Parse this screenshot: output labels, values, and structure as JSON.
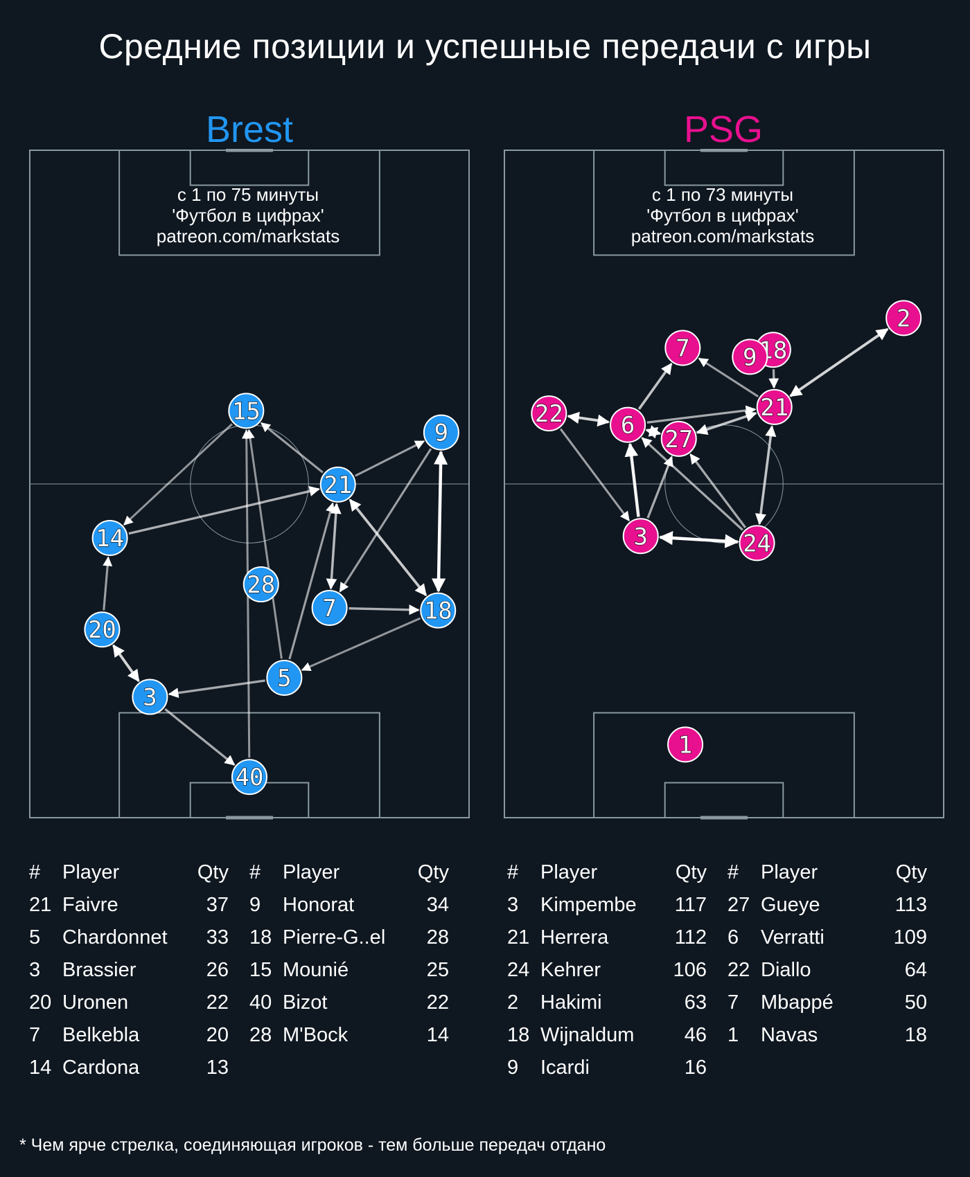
{
  "title": "Средние позиции и успешные передачи с игры",
  "footnote": "* Чем ярче стрелка, соединяющая игроков - тем больше передач отдано",
  "teams": [
    {
      "name": "Brest",
      "color": "#2196f3",
      "info": [
        "с 1 по 75 минуты",
        "'Футбол в цифрах'",
        "patreon.com/markstats"
      ],
      "table_headers": [
        "#",
        "Player",
        "Qty"
      ],
      "tables": [
        [
          {
            "num": "21",
            "player": "Faivre",
            "qty": "37"
          },
          {
            "num": "5",
            "player": "Chardonnet",
            "qty": "33"
          },
          {
            "num": "3",
            "player": "Brassier",
            "qty": "26"
          },
          {
            "num": "20",
            "player": "Uronen",
            "qty": "22"
          },
          {
            "num": "7",
            "player": "Belkebla",
            "qty": "20"
          },
          {
            "num": "14",
            "player": "Cardona",
            "qty": "13"
          }
        ],
        [
          {
            "num": "9",
            "player": "Honorat",
            "qty": "34"
          },
          {
            "num": "18",
            "player": "Pierre-G..el",
            "qty": "28"
          },
          {
            "num": "15",
            "player": "Mounié",
            "qty": "25"
          },
          {
            "num": "40",
            "player": "Bizot",
            "qty": "22"
          },
          {
            "num": "28",
            "player": "M'Bock",
            "qty": "14"
          }
        ]
      ]
    },
    {
      "name": "PSG",
      "color": "#e8108f",
      "info": [
        "с 1 по 73 минуты",
        "'Футбол в цифрах'",
        "patreon.com/markstats"
      ],
      "table_headers": [
        "#",
        "Player",
        "Qty"
      ],
      "tables": [
        [
          {
            "num": "3",
            "player": "Kimpembe",
            "qty": "117"
          },
          {
            "num": "21",
            "player": "Herrera",
            "qty": "112"
          },
          {
            "num": "24",
            "player": "Kehrer",
            "qty": "106"
          },
          {
            "num": "2",
            "player": "Hakimi",
            "qty": "63"
          },
          {
            "num": "18",
            "player": "Wijnaldum",
            "qty": "46"
          },
          {
            "num": "9",
            "player": "Icardi",
            "qty": "16"
          }
        ],
        [
          {
            "num": "27",
            "player": "Gueye",
            "qty": "113"
          },
          {
            "num": "6",
            "player": "Verratti",
            "qty": "109"
          },
          {
            "num": "22",
            "player": "Diallo",
            "qty": "64"
          },
          {
            "num": "7",
            "player": "Mbappé",
            "qty": "50"
          },
          {
            "num": "1",
            "player": "Navas",
            "qty": "18"
          }
        ]
      ]
    }
  ],
  "chart_data": [
    {
      "type": "scatter",
      "title": "Brest",
      "pitch": {
        "x_range": [
          0,
          68
        ],
        "y_range": [
          0,
          105
        ]
      },
      "players": [
        {
          "num": "15",
          "x": 33.5,
          "y": 64.0
        },
        {
          "num": "21",
          "x": 47.7,
          "y": 52.4
        },
        {
          "num": "9",
          "x": 63.7,
          "y": 60.6
        },
        {
          "num": "14",
          "x": 12.4,
          "y": 44.0
        },
        {
          "num": "28",
          "x": 35.8,
          "y": 36.7
        },
        {
          "num": "7",
          "x": 46.4,
          "y": 33.0
        },
        {
          "num": "18",
          "x": 63.2,
          "y": 32.6
        },
        {
          "num": "20",
          "x": 11.2,
          "y": 29.6
        },
        {
          "num": "5",
          "x": 39.4,
          "y": 22.0
        },
        {
          "num": "3",
          "x": 18.6,
          "y": 19.0
        },
        {
          "num": "40",
          "x": 34.0,
          "y": 6.4
        }
      ],
      "passes": [
        {
          "from": "9",
          "to": "18",
          "brightness": 1.0,
          "bidirectional": true
        },
        {
          "from": "21",
          "to": "18",
          "brightness": 0.7,
          "bidirectional": true
        },
        {
          "from": "20",
          "to": "3",
          "brightness": 0.75,
          "bidirectional": true
        },
        {
          "from": "21",
          "to": "7",
          "brightness": 0.6,
          "bidirectional": true
        },
        {
          "from": "21",
          "to": "15",
          "brightness": 0.45
        },
        {
          "from": "21",
          "to": "9",
          "brightness": 0.45
        },
        {
          "from": "14",
          "to": "21",
          "brightness": 0.55
        },
        {
          "from": "15",
          "to": "14",
          "brightness": 0.4
        },
        {
          "from": "20",
          "to": "14",
          "brightness": 0.45
        },
        {
          "from": "9",
          "to": "7",
          "brightness": 0.45
        },
        {
          "from": "7",
          "to": "18",
          "brightness": 0.55
        },
        {
          "from": "18",
          "to": "5",
          "brightness": 0.4
        },
        {
          "from": "5",
          "to": "21",
          "brightness": 0.45
        },
        {
          "from": "5",
          "to": "15",
          "brightness": 0.4
        },
        {
          "from": "5",
          "to": "3",
          "brightness": 0.5
        },
        {
          "from": "3",
          "to": "40",
          "brightness": 0.5
        },
        {
          "from": "40",
          "to": "15",
          "brightness": 0.4
        }
      ]
    },
    {
      "type": "scatter",
      "title": "PSG",
      "pitch": {
        "x_range": [
          0,
          68
        ],
        "y_range": [
          0,
          105
        ]
      },
      "players": [
        {
          "num": "2",
          "x": 61.8,
          "y": 78.6
        },
        {
          "num": "7",
          "x": 27.6,
          "y": 73.9
        },
        {
          "num": "18",
          "x": 41.6,
          "y": 73.6
        },
        {
          "num": "9",
          "x": 38.0,
          "y": 72.5
        },
        {
          "num": "21",
          "x": 41.8,
          "y": 64.6
        },
        {
          "num": "22",
          "x": 6.9,
          "y": 63.6
        },
        {
          "num": "6",
          "x": 19.1,
          "y": 61.8
        },
        {
          "num": "27",
          "x": 27.0,
          "y": 59.6
        },
        {
          "num": "3",
          "x": 21.1,
          "y": 44.3
        },
        {
          "num": "24",
          "x": 39.1,
          "y": 43.2
        },
        {
          "num": "1",
          "x": 28.0,
          "y": 11.5
        }
      ],
      "passes": [
        {
          "from": "3",
          "to": "24",
          "brightness": 1.0,
          "bidirectional": true
        },
        {
          "from": "3",
          "to": "6",
          "brightness": 0.95
        },
        {
          "from": "2",
          "to": "21",
          "brightness": 0.75,
          "bidirectional": true
        },
        {
          "from": "22",
          "to": "6",
          "brightness": 0.75,
          "bidirectional": true
        },
        {
          "from": "6",
          "to": "27",
          "brightness": 0.7,
          "bidirectional": true
        },
        {
          "from": "27",
          "to": "21",
          "brightness": 0.65,
          "bidirectional": true
        },
        {
          "from": "24",
          "to": "21",
          "brightness": 0.65,
          "bidirectional": true
        },
        {
          "from": "6",
          "to": "7",
          "brightness": 0.65
        },
        {
          "from": "6",
          "to": "21",
          "brightness": 0.5
        },
        {
          "from": "21",
          "to": "7",
          "brightness": 0.45
        },
        {
          "from": "18",
          "to": "21",
          "brightness": 0.5
        },
        {
          "from": "22",
          "to": "3",
          "brightness": 0.45
        },
        {
          "from": "3",
          "to": "27",
          "brightness": 0.5
        },
        {
          "from": "24",
          "to": "27",
          "brightness": 0.5
        },
        {
          "from": "24",
          "to": "6",
          "brightness": 0.5
        }
      ]
    }
  ]
}
